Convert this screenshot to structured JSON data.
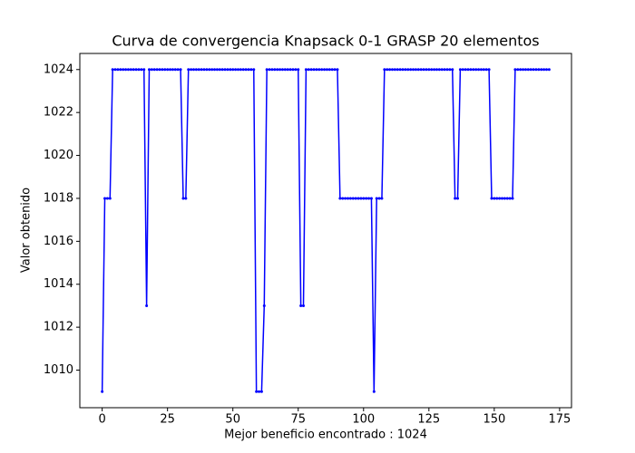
{
  "chart_data": {
    "type": "line",
    "title": "Curva de convergencia Knapsack 0-1 GRASP 20 elementos",
    "xlabel": "Mejor beneficio encontrado : 1024",
    "ylabel": "Valor obtenido",
    "x": [
      0,
      1,
      2,
      3,
      4,
      5,
      6,
      7,
      8,
      9,
      10,
      11,
      12,
      13,
      14,
      15,
      16,
      17,
      18,
      19,
      20,
      21,
      22,
      23,
      24,
      25,
      26,
      27,
      28,
      29,
      30,
      31,
      32,
      33,
      34,
      35,
      36,
      37,
      38,
      39,
      40,
      41,
      42,
      43,
      44,
      45,
      46,
      47,
      48,
      49,
      50,
      51,
      52,
      53,
      54,
      55,
      56,
      57,
      58,
      59,
      60,
      61,
      62,
      63,
      64,
      65,
      66,
      67,
      68,
      69,
      70,
      71,
      72,
      73,
      74,
      75,
      76,
      77,
      78,
      79,
      80,
      81,
      82,
      83,
      84,
      85,
      86,
      87,
      88,
      89,
      90,
      91,
      92,
      93,
      94,
      95,
      96,
      97,
      98,
      99,
      100,
      101,
      102,
      103,
      104,
      105,
      106,
      107,
      108,
      109,
      110,
      111,
      112,
      113,
      114,
      115,
      116,
      117,
      118,
      119,
      120,
      121,
      122,
      123,
      124,
      125,
      126,
      127,
      128,
      129,
      130,
      131,
      132,
      133,
      134,
      135,
      136,
      137,
      138,
      139,
      140,
      141,
      142,
      143,
      144,
      145,
      146,
      147,
      148,
      149,
      150,
      151,
      152,
      153,
      154,
      155,
      156,
      157,
      158,
      159,
      160,
      161,
      162,
      163,
      164,
      165,
      166,
      167,
      168,
      169,
      170,
      171
    ],
    "series": [
      {
        "color": "#0000ff",
        "values": [
          1009,
          1018,
          1018,
          1018,
          1024,
          1024,
          1024,
          1024,
          1024,
          1024,
          1024,
          1024,
          1024,
          1024,
          1024,
          1024,
          1024,
          1013,
          1024,
          1024,
          1024,
          1024,
          1024,
          1024,
          1024,
          1024,
          1024,
          1024,
          1024,
          1024,
          1024,
          1018,
          1018,
          1024,
          1024,
          1024,
          1024,
          1024,
          1024,
          1024,
          1024,
          1024,
          1024,
          1024,
          1024,
          1024,
          1024,
          1024,
          1024,
          1024,
          1024,
          1024,
          1024,
          1024,
          1024,
          1024,
          1024,
          1024,
          1024,
          1009,
          1009,
          1009,
          1013,
          1024,
          1024,
          1024,
          1024,
          1024,
          1024,
          1024,
          1024,
          1024,
          1024,
          1024,
          1024,
          1024,
          1013,
          1013,
          1024,
          1024,
          1024,
          1024,
          1024,
          1024,
          1024,
          1024,
          1024,
          1024,
          1024,
          1024,
          1024,
          1018,
          1018,
          1018,
          1018,
          1018,
          1018,
          1018,
          1018,
          1018,
          1018,
          1018,
          1018,
          1018,
          1009,
          1018,
          1018,
          1018,
          1024,
          1024,
          1024,
          1024,
          1024,
          1024,
          1024,
          1024,
          1024,
          1024,
          1024,
          1024,
          1024,
          1024,
          1024,
          1024,
          1024,
          1024,
          1024,
          1024,
          1024,
          1024,
          1024,
          1024,
          1024,
          1024,
          1024,
          1018,
          1018,
          1024,
          1024,
          1024,
          1024,
          1024,
          1024,
          1024,
          1024,
          1024,
          1024,
          1024,
          1024,
          1018,
          1018,
          1018,
          1018,
          1018,
          1018,
          1018,
          1018,
          1018,
          1024,
          1024,
          1024,
          1024,
          1024,
          1024,
          1024,
          1024,
          1024,
          1024,
          1024,
          1024,
          1024,
          1024
        ]
      }
    ],
    "xlim": [
      -8.55,
      179.55
    ],
    "ylim": [
      1008.25,
      1024.75
    ],
    "xticks": [
      0,
      25,
      50,
      75,
      100,
      125,
      150,
      175
    ],
    "yticks": [
      1010,
      1012,
      1014,
      1016,
      1018,
      1020,
      1022,
      1024
    ],
    "grid": false
  }
}
